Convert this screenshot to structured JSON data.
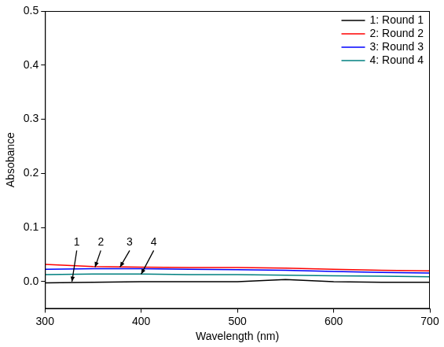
{
  "chart_data": {
    "type": "line",
    "x_label": "Wavelength (nm)",
    "y_label": "Absobance",
    "x": [
      300,
      350,
      400,
      450,
      500,
      550,
      600,
      650,
      700
    ],
    "series": [
      {
        "name": "1: Round 1",
        "color": "#000000",
        "values": [
          -0.002,
          -0.001,
          0,
          0,
          0,
          0.004,
          0,
          -0.001,
          -0.001
        ]
      },
      {
        "name": "2: Round 2",
        "color": "#ff0000",
        "values": [
          0.032,
          0.028,
          0.027,
          0.026,
          0.026,
          0.025,
          0.023,
          0.021,
          0.02
        ]
      },
      {
        "name": "3: Round 3",
        "color": "#0000ff",
        "values": [
          0.023,
          0.024,
          0.024,
          0.023,
          0.022,
          0.021,
          0.019,
          0.017,
          0.016
        ]
      },
      {
        "name": "4: Round 4",
        "color": "#008080",
        "values": [
          0.013,
          0.014,
          0.014,
          0.013,
          0.013,
          0.012,
          0.011,
          0.01,
          0.009
        ]
      }
    ],
    "xlim": [
      300,
      700
    ],
    "xticks": [
      300,
      400,
      500,
      600,
      700
    ],
    "ylim": [
      -0.05,
      0.5
    ],
    "yticks": [
      {
        "value": 0,
        "label": "0.0"
      },
      0.1,
      0.2,
      0.3,
      0.4,
      0.5
    ],
    "annotations": [
      {
        "text": "1",
        "x": 333,
        "y": 0.062,
        "target": [
          328,
          0.0
        ]
      },
      {
        "text": "2",
        "x": 358,
        "y": 0.062,
        "target": [
          352,
          0.027
        ]
      },
      {
        "text": "3",
        "x": 388,
        "y": 0.062,
        "target": [
          378,
          0.027
        ]
      },
      {
        "text": "4",
        "x": 413,
        "y": 0.062,
        "target": [
          400,
          0.014
        ]
      }
    ],
    "grid": false,
    "legend": "upper right"
  }
}
